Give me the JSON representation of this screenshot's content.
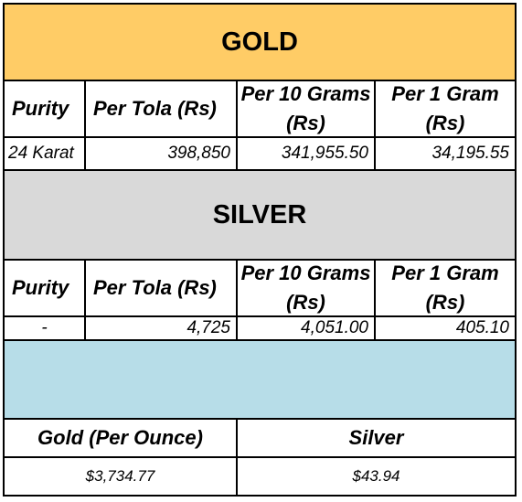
{
  "gold": {
    "title": "GOLD",
    "headers": [
      "Purity",
      "Per Tola (Rs)",
      "Per 10 Grams (Rs)",
      "Per 1 Gram (Rs)"
    ],
    "row": [
      "24 Karat",
      "398,850",
      "341,955.50",
      "34,195.55"
    ]
  },
  "silver": {
    "title": "SILVER",
    "headers": [
      "Purity",
      "Per Tola (Rs)",
      "Per 10 Grams (Rs)",
      "Per 1 Gram (Rs)"
    ],
    "row": [
      "-",
      "4,725",
      "4,051.00",
      "405.10"
    ]
  },
  "international": {
    "headers": [
      "Gold (Per Ounce)",
      "Silver"
    ],
    "values": [
      "$3,734.77",
      "$43.94"
    ]
  },
  "colors": {
    "gold_banner": "#ffcc66",
    "silver_banner": "#d9d9d9",
    "blue_band": "#b7dde8"
  }
}
